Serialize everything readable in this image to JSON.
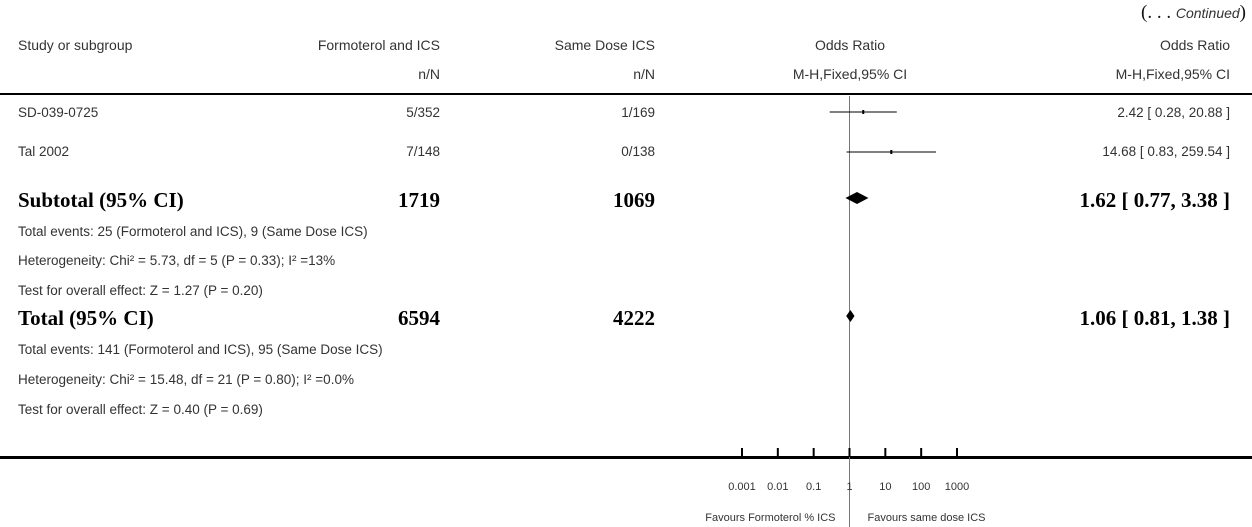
{
  "continued": {
    "open": "(. . . ",
    "label": "Continued",
    "close": ")"
  },
  "headers": {
    "study": "Study or subgroup",
    "treatment": "Formoterol and ICS",
    "treatment_sub": "n/N",
    "control": "Same Dose ICS",
    "control_sub": "n/N",
    "or_plot": "Odds Ratio",
    "or_plot_sub": "M-H,Fixed,95% CI",
    "or_value": "Odds Ratio",
    "or_value_sub": "M-H,Fixed,95% CI"
  },
  "rows": [
    {
      "study": "SD-039-0725",
      "treatment": "5/352",
      "control": "1/169",
      "ci_text": "2.42 [ 0.28, 20.88 ]"
    },
    {
      "study": "Tal 2002",
      "treatment": "7/148",
      "control": "0/138",
      "ci_text": "14.68 [ 0.83, 259.54 ]"
    }
  ],
  "subtotal": {
    "label": "Subtotal (95% CI)",
    "treatment": "1719",
    "control": "1069",
    "ci_text": "1.62 [ 0.77, 3.38 ]",
    "events": "Total events: 25 (Formoterol and ICS), 9 (Same Dose ICS)",
    "heterogeneity": "Heterogeneity: Chi² = 5.73, df = 5 (P = 0.33); I² =13%",
    "overall": "Test for overall effect: Z = 1.27 (P = 0.20)"
  },
  "total": {
    "label": "Total (95% CI)",
    "treatment": "6594",
    "control": "4222",
    "ci_text": "1.06 [ 0.81, 1.38 ]",
    "events": "Total events: 141 (Formoterol and ICS), 95 (Same Dose ICS)",
    "heterogeneity": "Heterogeneity: Chi² = 15.48, df = 21 (P = 0.80); I² =0.0%",
    "overall": "Test for overall effect: Z = 0.40 (P = 0.69)"
  },
  "axis": {
    "ticks": [
      {
        "value": 0.001,
        "label": "0.001"
      },
      {
        "value": 0.01,
        "label": "0.01"
      },
      {
        "value": 0.1,
        "label": "0.1"
      },
      {
        "value": 1,
        "label": "1"
      },
      {
        "value": 10,
        "label": "10"
      },
      {
        "value": 100,
        "label": "100"
      },
      {
        "value": 1000,
        "label": "1000"
      }
    ],
    "favours_left": "Favours Formoterol % ICS",
    "favours_right": "Favours same dose ICS"
  },
  "chart_data": {
    "type": "scatter",
    "subtype": "forest",
    "xscale": "log",
    "xlim": [
      0.001,
      1000
    ],
    "reference_line": 1,
    "studies": [
      {
        "name": "SD-039-0725",
        "or": 2.42,
        "lower": 0.28,
        "upper": 20.88
      },
      {
        "name": "Tal 2002",
        "or": 14.68,
        "lower": 0.83,
        "upper": 259.54
      }
    ],
    "summaries": [
      {
        "name": "Subtotal (95% CI)",
        "or": 1.62,
        "lower": 0.77,
        "upper": 3.38
      },
      {
        "name": "Total (95% CI)",
        "or": 1.06,
        "lower": 0.81,
        "upper": 1.38
      }
    ]
  }
}
